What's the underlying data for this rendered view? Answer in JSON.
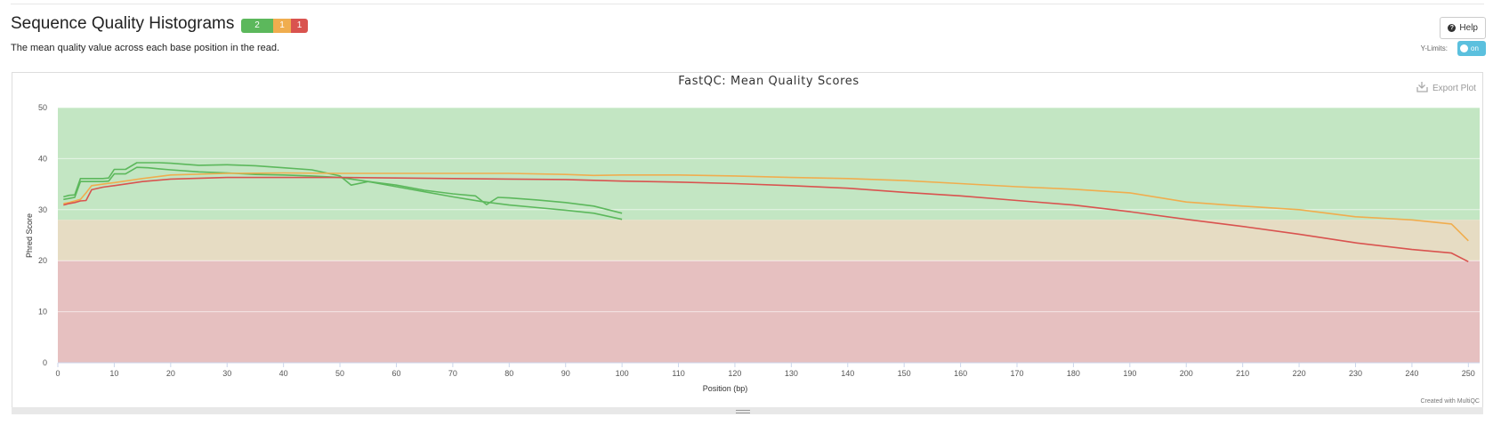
{
  "section": {
    "title": "Sequence Quality Histograms",
    "description": "The mean quality value across each base position in the read."
  },
  "badges": {
    "pass": "2",
    "warn": "1",
    "fail": "1"
  },
  "help_label": "Help",
  "ylimits": {
    "label": "Y-Limits:",
    "state": "on"
  },
  "export_label": "Export Plot",
  "credit": "Created with MultiQC",
  "colors": {
    "zone_good": "#c3e6c3",
    "zone_warn": "#e6dcc3",
    "zone_bad": "#e6c0c0",
    "pass": "#5cb85c",
    "warn": "#f0ad4e",
    "fail": "#d9534f"
  },
  "chart_data": {
    "type": "line",
    "title": "FastQC: Mean Quality Scores",
    "xlabel": "Position (bp)",
    "ylabel": "Phred Score",
    "xlim": [
      0,
      252
    ],
    "ylim": [
      0,
      50
    ],
    "xticks": [
      0,
      10,
      20,
      30,
      40,
      50,
      60,
      70,
      80,
      90,
      100,
      110,
      120,
      130,
      140,
      150,
      160,
      170,
      180,
      190,
      200,
      210,
      220,
      230,
      240,
      250
    ],
    "yticks": [
      0,
      10,
      20,
      30,
      40,
      50
    ],
    "bands": [
      {
        "from": 28,
        "to": 50,
        "color": "#c3e6c3"
      },
      {
        "from": 20,
        "to": 28,
        "color": "#e6dcc3"
      },
      {
        "from": 0,
        "to": 20,
        "color": "#e6c0c0"
      }
    ],
    "series": [
      {
        "color": "#5cb85c",
        "x": [
          1,
          2,
          3,
          4,
          5,
          6,
          7,
          8,
          9,
          10,
          12,
          14,
          16,
          18,
          20,
          25,
          30,
          35,
          40,
          45,
          50,
          52,
          55,
          58,
          60,
          65,
          70,
          74,
          76,
          78,
          80,
          85,
          90,
          95,
          100
        ],
        "y": [
          32.5,
          32.8,
          32.9,
          36.1,
          36.1,
          36.1,
          36.1,
          36.1,
          36.2,
          37.9,
          37.9,
          39.2,
          39.2,
          39.2,
          39.1,
          38.7,
          38.8,
          38.6,
          38.2,
          37.8,
          36.6,
          34.8,
          35.5,
          35.1,
          34.8,
          33.8,
          33.1,
          32.7,
          31.0,
          32.4,
          32.3,
          31.9,
          31.4,
          30.7,
          29.3
        ]
      },
      {
        "color": "#5cb85c",
        "x": [
          1,
          2,
          3,
          4,
          5,
          6,
          7,
          8,
          9,
          10,
          12,
          14,
          16,
          18,
          20,
          25,
          30,
          35,
          40,
          45,
          50,
          55,
          60,
          65,
          70,
          75,
          80,
          85,
          90,
          95,
          100
        ],
        "y": [
          32.0,
          32.2,
          32.4,
          35.5,
          35.5,
          35.5,
          35.5,
          35.5,
          35.6,
          37.0,
          37.0,
          38.3,
          38.2,
          38.0,
          37.8,
          37.4,
          37.2,
          36.9,
          36.8,
          36.6,
          36.3,
          35.5,
          34.5,
          33.5,
          32.5,
          31.6,
          30.9,
          30.4,
          29.9,
          29.3,
          28.1
        ]
      },
      {
        "color": "#f0ad4e",
        "x": [
          1,
          2,
          3,
          4,
          5,
          6,
          8,
          10,
          15,
          20,
          30,
          40,
          50,
          60,
          70,
          80,
          90,
          95,
          100,
          110,
          120,
          130,
          140,
          150,
          160,
          170,
          180,
          190,
          200,
          210,
          220,
          230,
          240,
          247,
          250
        ],
        "y": [
          31.2,
          31.4,
          31.7,
          32.0,
          33.3,
          34.7,
          35.0,
          35.3,
          36.1,
          36.8,
          37.1,
          37.2,
          37.1,
          37.1,
          37.1,
          37.1,
          36.9,
          36.7,
          36.8,
          36.8,
          36.6,
          36.3,
          36.1,
          35.7,
          35.1,
          34.5,
          34.0,
          33.3,
          31.5,
          30.7,
          30.0,
          28.6,
          28.0,
          27.2,
          23.9
        ]
      },
      {
        "color": "#d9534f",
        "x": [
          1,
          2,
          3,
          4,
          5,
          6,
          8,
          10,
          15,
          20,
          30,
          40,
          50,
          60,
          70,
          80,
          90,
          100,
          110,
          120,
          130,
          140,
          150,
          160,
          170,
          180,
          190,
          200,
          210,
          220,
          230,
          240,
          247,
          250
        ],
        "y": [
          30.9,
          31.2,
          31.4,
          31.7,
          31.8,
          33.9,
          34.4,
          34.7,
          35.5,
          36.0,
          36.3,
          36.3,
          36.3,
          36.2,
          36.1,
          36.0,
          35.9,
          35.6,
          35.4,
          35.1,
          34.7,
          34.2,
          33.4,
          32.7,
          31.8,
          30.9,
          29.6,
          28.1,
          26.7,
          25.2,
          23.5,
          22.2,
          21.5,
          19.8
        ]
      }
    ]
  }
}
